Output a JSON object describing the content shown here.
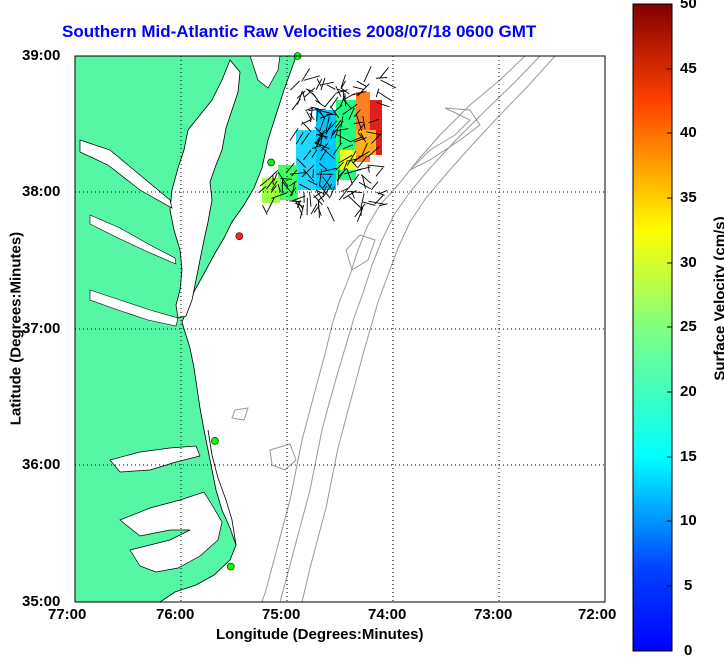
{
  "title": "Southern Mid-Atlantic Raw Velocities 2008/07/18 0600 GMT",
  "map": {
    "xlabel": "Longitude (Degrees:Minutes)",
    "ylabel": "Latitude (Degrees:Minutes)",
    "x_ticks": [
      "77:00",
      "76:00",
      "75:00",
      "74:00",
      "73:00",
      "72:00"
    ],
    "y_ticks": [
      "39:00",
      "38:00",
      "37:00",
      "36:00",
      "35:00"
    ],
    "land_color": "#55f6a5",
    "ocean_color": "#ffffff",
    "bathymetry_color": "#999999",
    "grid": true
  },
  "colorbar": {
    "label": "Surface Velocity (cm/s)",
    "ticks": [
      "50",
      "45",
      "40",
      "35",
      "30",
      "25",
      "20",
      "15",
      "10",
      "5",
      "0"
    ],
    "colormap": "jet"
  },
  "chart_data": {
    "type": "map-vector-field",
    "xlim": [
      -77,
      -72
    ],
    "ylim": [
      35,
      39
    ],
    "sites": [
      {
        "lon": -74.9,
        "lat": 39.0,
        "color": "#00ff00"
      },
      {
        "lon": -75.15,
        "lat": 38.22,
        "color": "#00ff00"
      },
      {
        "lon": -75.45,
        "lat": 37.68,
        "color": "#ff2020"
      },
      {
        "lon": -75.68,
        "lat": 36.18,
        "color": "#00ff00"
      },
      {
        "lon": -75.53,
        "lat": 35.26,
        "color": "#00ff00"
      }
    ]
  }
}
